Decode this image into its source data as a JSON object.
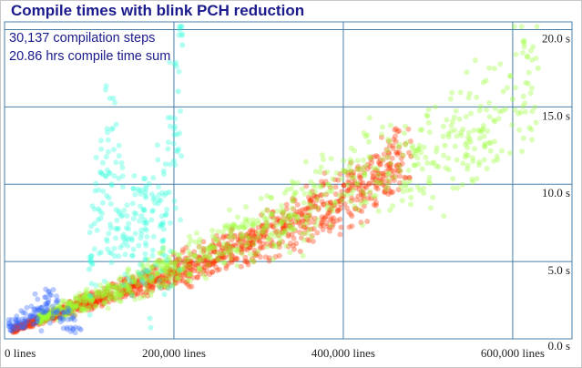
{
  "chart_data": {
    "type": "scatter",
    "title": "Compile times with blink PCH reduction",
    "annotations": [
      "30,137 compilation steps",
      "20.86 hrs compile time sum"
    ],
    "xlabel": "",
    "ylabel": "",
    "xlim": [
      0,
      670000
    ],
    "ylim": [
      0,
      20.5
    ],
    "x_ticks": [
      0,
      200000,
      400000,
      600000
    ],
    "x_tick_labels": [
      "0 lines",
      "200,000 lines",
      "400,000 lines",
      "600,000 lines"
    ],
    "y_ticks": [
      0,
      5,
      10,
      15,
      20
    ],
    "y_tick_labels": [
      "0.0 s",
      "5.0 s",
      "10.0 s",
      "15.0 s",
      "20.0 s"
    ],
    "grid": true,
    "point_count": 30137,
    "series": [
      {
        "color": "#ff3300",
        "x": [
          10000,
          40000,
          80000,
          120000,
          160000,
          200000,
          240000,
          280000,
          320000,
          360000,
          400000,
          440000,
          480000
        ],
        "y": [
          0.6,
          1.2,
          2.0,
          2.8,
          3.5,
          4.3,
          5.1,
          6.0,
          6.9,
          8.0,
          9.2,
          10.5,
          11.8
        ]
      },
      {
        "color": "#99ff33",
        "x": [
          40000,
          120000,
          200000,
          280000,
          360000,
          440000,
          520000,
          560000,
          600000,
          630000
        ],
        "y": [
          1.3,
          2.9,
          4.6,
          6.6,
          8.7,
          11.0,
          12.5,
          13.5,
          15.5,
          17.5
        ]
      },
      {
        "color": "#33ffdd",
        "x": [
          100000,
          120000,
          150000,
          190000,
          200000,
          205000,
          210000
        ],
        "y": [
          4.5,
          10.5,
          6.5,
          8.0,
          11.5,
          16.0,
          19.0
        ]
      },
      {
        "color": "#3366ff",
        "x": [
          5000,
          15000,
          30000,
          50000,
          70000,
          90000
        ],
        "y": [
          0.8,
          1.0,
          1.5,
          2.1,
          1.7,
          0.6
        ]
      }
    ]
  }
}
